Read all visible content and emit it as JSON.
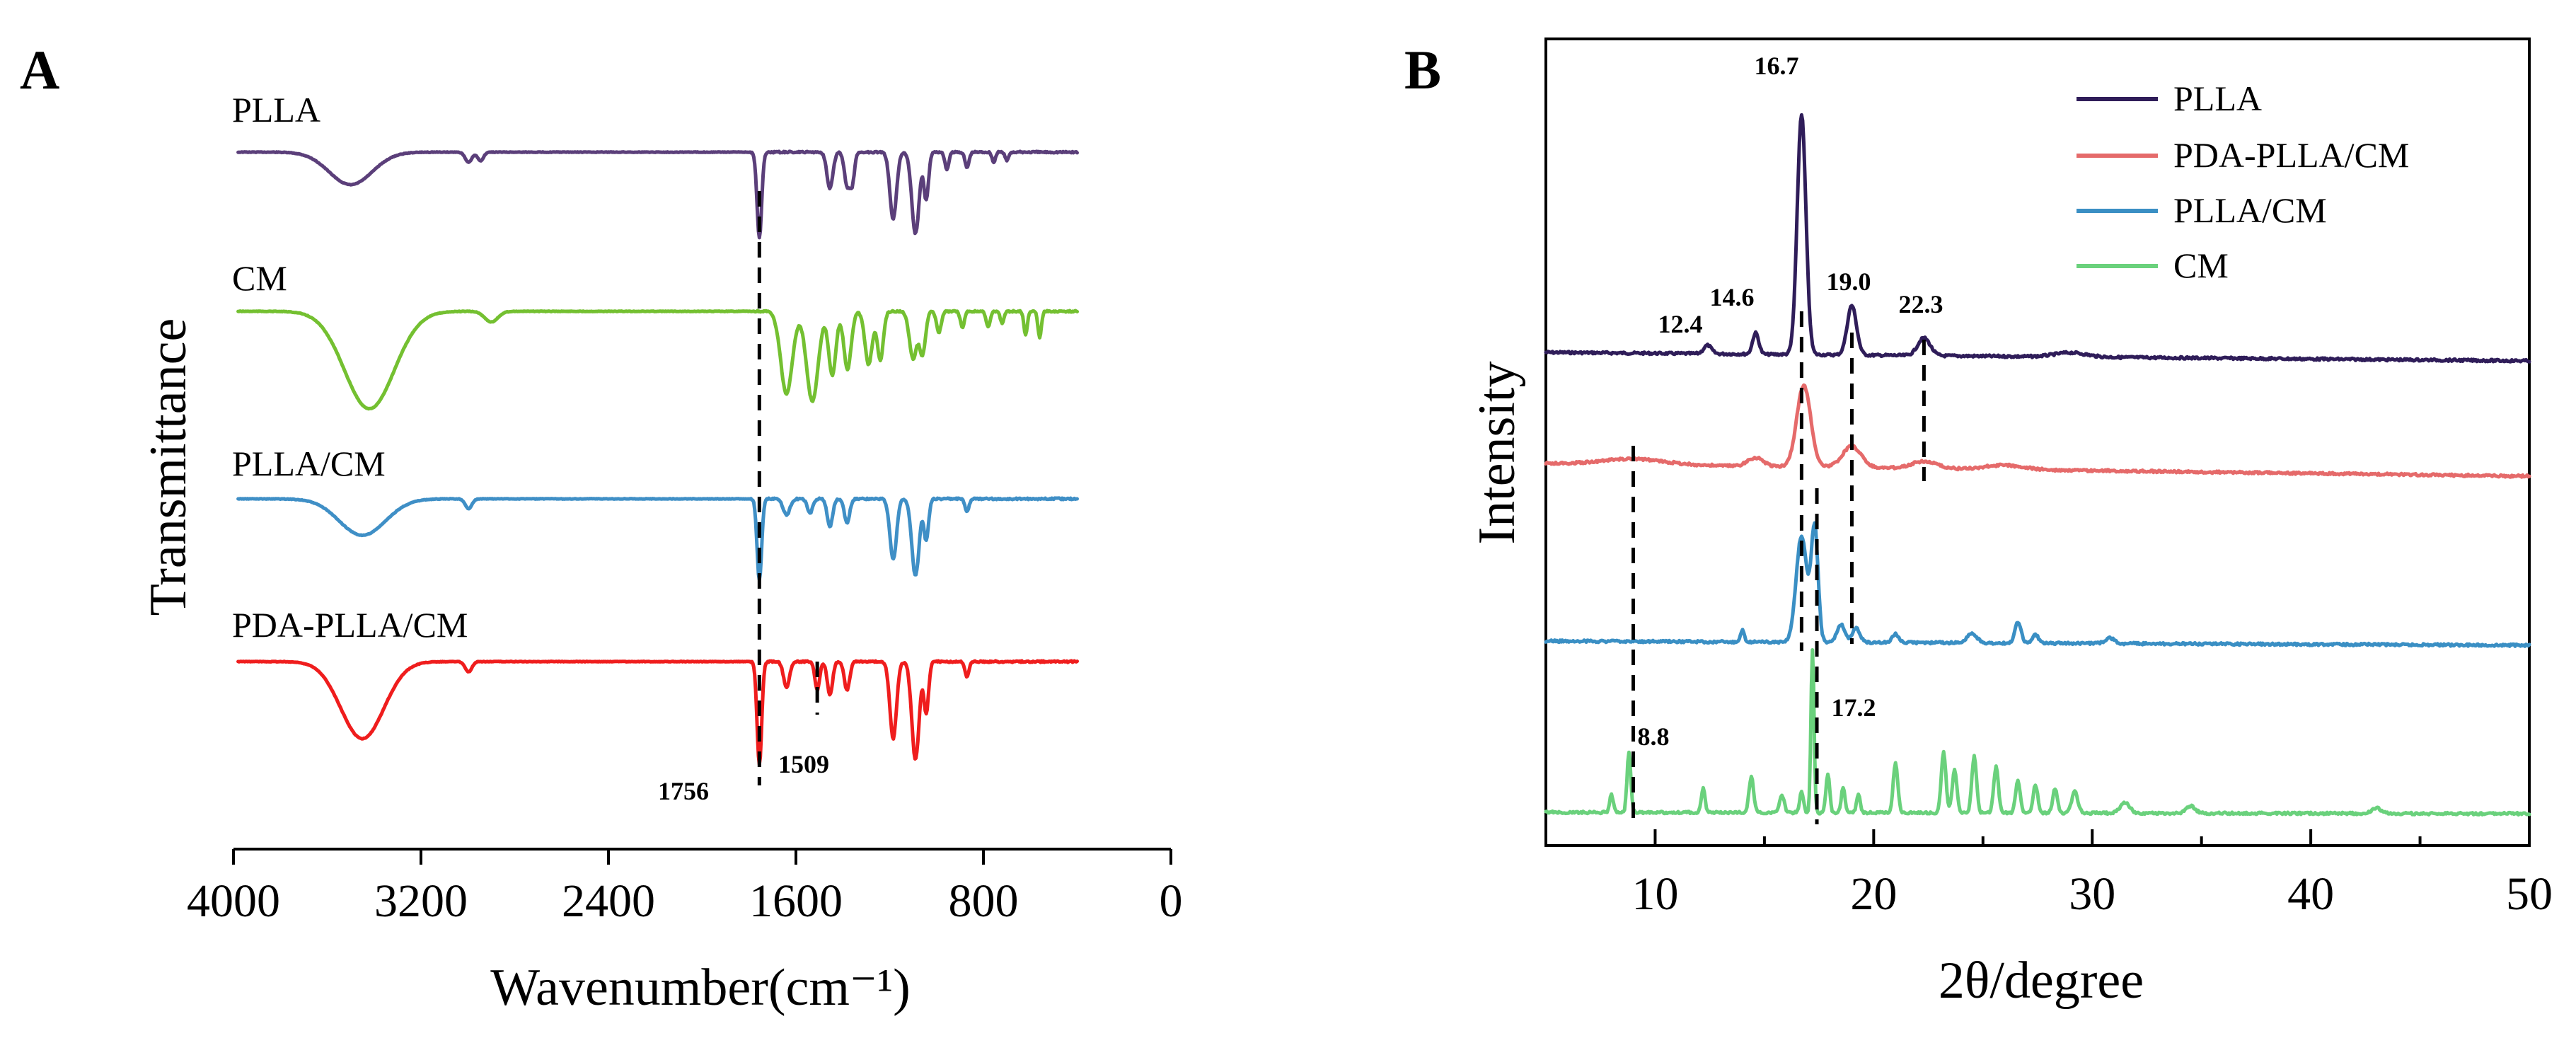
{
  "chart_data": [
    {
      "type": "line",
      "panel": "A",
      "xlabel": "Wavenumber(cm⁻¹)",
      "ylabel": "Transmittance",
      "xlim": [
        4000,
        0
      ],
      "x_reversed": true,
      "x_ticks": [
        4000,
        3200,
        2400,
        1600,
        800,
        0
      ],
      "series": [
        {
          "name": "PLLA",
          "color": "#5b3f7a",
          "offset": 0,
          "depth": 55,
          "valleys": [
            [
              3500,
              0.38,
              130
            ],
            [
              2997,
              0.12,
              20
            ],
            [
              2946,
              0.1,
              18
            ],
            [
              1756,
              1.0,
              14
            ],
            [
              1455,
              0.42,
              18
            ],
            [
              1382,
              0.38,
              16
            ],
            [
              1360,
              0.35,
              14
            ],
            [
              1185,
              0.78,
              20
            ],
            [
              1090,
              0.95,
              22
            ],
            [
              1044,
              0.55,
              14
            ],
            [
              956,
              0.2,
              12
            ],
            [
              870,
              0.18,
              12
            ],
            [
              756,
              0.12,
              10
            ],
            [
              700,
              0.1,
              10
            ]
          ]
        },
        {
          "name": "CM",
          "color": "#74c031",
          "offset": 1,
          "depth": 68,
          "valleys": [
            [
              3420,
              0.92,
              150
            ],
            [
              2900,
              0.1,
              40
            ],
            [
              1640,
              0.78,
              35
            ],
            [
              1530,
              0.85,
              35
            ],
            [
              1445,
              0.6,
              22
            ],
            [
              1380,
              0.55,
              22
            ],
            [
              1290,
              0.5,
              22
            ],
            [
              1240,
              0.46,
              18
            ],
            [
              1100,
              0.45,
              22
            ],
            [
              1060,
              0.4,
              18
            ],
            [
              990,
              0.2,
              14
            ],
            [
              890,
              0.15,
              12
            ],
            [
              780,
              0.15,
              12
            ],
            [
              720,
              0.12,
              10
            ],
            [
              620,
              0.22,
              10
            ],
            [
              560,
              0.25,
              10
            ]
          ]
        },
        {
          "name": "PLLA/CM",
          "color": "#3f8fc6",
          "offset": 2,
          "depth": 52,
          "valleys": [
            [
              3450,
              0.45,
              140
            ],
            [
              2997,
              0.12,
              20
            ],
            [
              1756,
              1.0,
              14
            ],
            [
              1640,
              0.2,
              20
            ],
            [
              1540,
              0.18,
              16
            ],
            [
              1455,
              0.35,
              16
            ],
            [
              1382,
              0.3,
              16
            ],
            [
              1185,
              0.75,
              20
            ],
            [
              1090,
              0.95,
              22
            ],
            [
              1044,
              0.5,
              14
            ],
            [
              870,
              0.15,
              12
            ]
          ]
        },
        {
          "name": "PDA-PLLA/CM",
          "color": "#ef1d1d",
          "offset": 3,
          "depth": 66,
          "valleys": [
            [
              3450,
              0.75,
              130
            ],
            [
              2997,
              0.1,
              20
            ],
            [
              1756,
              1.0,
              14
            ],
            [
              1640,
              0.25,
              18
            ],
            [
              1509,
              0.28,
              14
            ],
            [
              1455,
              0.32,
              16
            ],
            [
              1382,
              0.28,
              16
            ],
            [
              1185,
              0.75,
              20
            ],
            [
              1090,
              0.95,
              22
            ],
            [
              1044,
              0.5,
              14
            ],
            [
              870,
              0.15,
              12
            ]
          ]
        }
      ],
      "annotations": [
        {
          "label": "1756",
          "x": 1756
        },
        {
          "label": "1509",
          "x": 1509
        }
      ]
    },
    {
      "type": "line",
      "panel": "B",
      "xlabel": "2θ/degree",
      "ylabel": "Intensity",
      "xlim": [
        5,
        50
      ],
      "x_ticks": [
        10,
        20,
        30,
        40,
        50
      ],
      "legend_position": "top-right",
      "series": [
        {
          "name": "PLLA",
          "color": "#2f1d59",
          "offset": 0,
          "base_tilt": 12,
          "peaks": [
            [
              12.4,
              12,
              0.25
            ],
            [
              14.6,
              30,
              0.2
            ],
            [
              16.7,
              340,
              0.28
            ],
            [
              19.0,
              70,
              0.3
            ],
            [
              22.3,
              25,
              0.4
            ],
            [
              29,
              6,
              1.0
            ]
          ]
        },
        {
          "name": "PDA-PLLA/CM",
          "color": "#e56a6a",
          "offset": 1,
          "base_tilt": 18,
          "peaks": [
            [
              9.0,
              8,
              2.0
            ],
            [
              14.6,
              12,
              0.5
            ],
            [
              16.8,
              115,
              0.45
            ],
            [
              19.0,
              30,
              0.6
            ],
            [
              22.3,
              10,
              0.8
            ],
            [
              26,
              6,
              1.2
            ]
          ]
        },
        {
          "name": "PLLA/CM",
          "color": "#3a8fc4",
          "offset": 2,
          "base_tilt": 6,
          "peaks": [
            [
              14.0,
              18,
              0.12
            ],
            [
              16.7,
              150,
              0.35
            ],
            [
              17.3,
              160,
              0.22
            ],
            [
              18.5,
              25,
              0.25
            ],
            [
              19.2,
              20,
              0.25
            ],
            [
              21.0,
              12,
              0.2
            ],
            [
              24.5,
              14,
              0.3
            ],
            [
              26.6,
              30,
              0.2
            ],
            [
              27.4,
              12,
              0.2
            ],
            [
              30.8,
              8,
              0.3
            ]
          ]
        },
        {
          "name": "CM",
          "color": "#6ad17c",
          "offset": 3,
          "base_tilt": 2,
          "peaks": [
            [
              8.0,
              25,
              0.12
            ],
            [
              8.8,
              85,
              0.12
            ],
            [
              12.2,
              35,
              0.12
            ],
            [
              14.4,
              50,
              0.15
            ],
            [
              15.8,
              25,
              0.15
            ],
            [
              16.7,
              30,
              0.12
            ],
            [
              17.2,
              230,
              0.1
            ],
            [
              17.9,
              55,
              0.12
            ],
            [
              18.6,
              35,
              0.12
            ],
            [
              19.3,
              25,
              0.12
            ],
            [
              21.0,
              70,
              0.15
            ],
            [
              23.2,
              85,
              0.15
            ],
            [
              23.7,
              60,
              0.15
            ],
            [
              24.6,
              80,
              0.15
            ],
            [
              25.6,
              65,
              0.15
            ],
            [
              26.6,
              45,
              0.15
            ],
            [
              27.4,
              40,
              0.15
            ],
            [
              28.3,
              35,
              0.15
            ],
            [
              29.2,
              30,
              0.2
            ],
            [
              31.5,
              15,
              0.3
            ],
            [
              34.5,
              10,
              0.3
            ],
            [
              43,
              8,
              0.3
            ]
          ]
        }
      ],
      "annotations": [
        {
          "label": "16.7",
          "x": 16.7
        },
        {
          "label": "12.4",
          "x": 12.4
        },
        {
          "label": "14.6",
          "x": 14.6
        },
        {
          "label": "19.0",
          "x": 19.0
        },
        {
          "label": "22.3",
          "x": 22.3
        },
        {
          "label": "8.8",
          "x": 8.8
        },
        {
          "label": "17.2",
          "x": 17.2
        }
      ]
    }
  ],
  "panels": {
    "a": {
      "letter": "A"
    },
    "b": {
      "letter": "B"
    }
  }
}
